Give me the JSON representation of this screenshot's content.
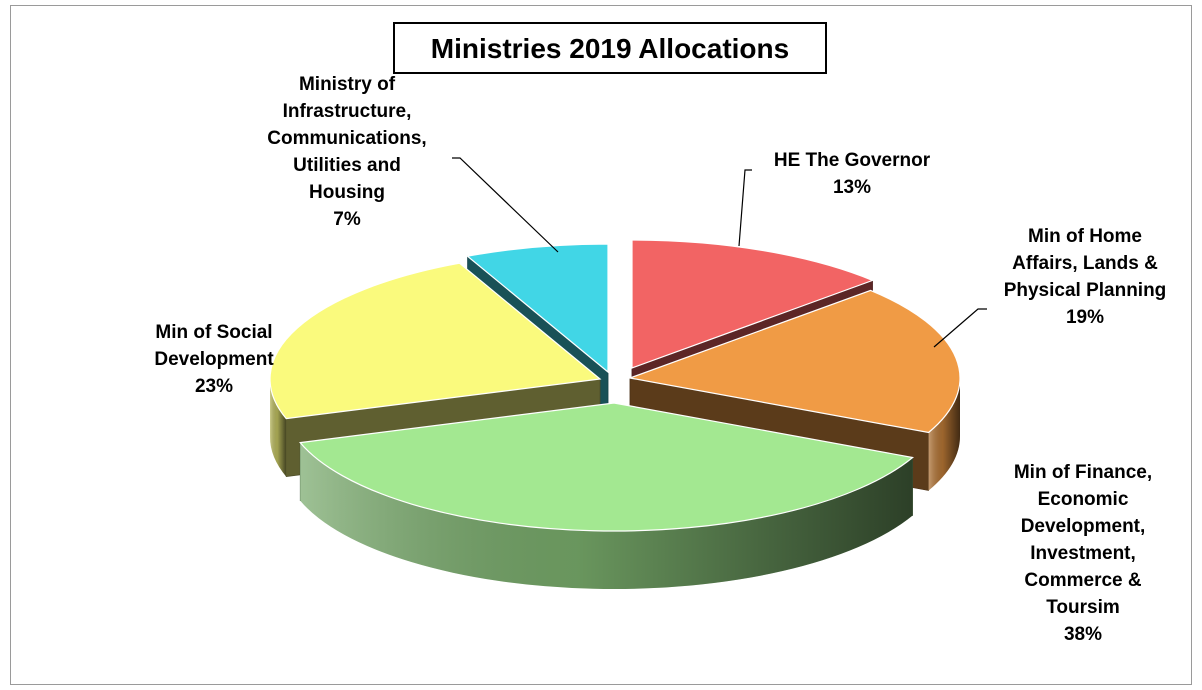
{
  "chart_data": {
    "type": "pie",
    "title": "Ministries 2019 Allocations",
    "three_d": true,
    "exploded": true,
    "legend": "none",
    "slices": [
      {
        "label": "HE The Governor",
        "value": 13,
        "percent_label": "13%",
        "label_lines": [
          "HE The Governor"
        ],
        "color": "#f26464"
      },
      {
        "label": "Min of Home Affairs, Lands & Physical Planning",
        "value": 19,
        "percent_label": "19%",
        "label_lines": [
          "Min of Home",
          "Affairs, Lands &",
          "Physical Planning"
        ],
        "color": "#f09b45"
      },
      {
        "label": "Min of Finance, Economic Development, Investment, Commerce & Toursim",
        "value": 38,
        "percent_label": "38%",
        "label_lines": [
          "Min of Finance,",
          "Economic",
          "Development,",
          "Investment,",
          "Commerce &",
          "Toursim"
        ],
        "color": "#a3e891"
      },
      {
        "label": "Min of Social Development",
        "value": 23,
        "percent_label": "23%",
        "label_lines": [
          "Min of Social",
          "Development"
        ],
        "color": "#fafa7d"
      },
      {
        "label": "Ministry of Infrastructure, Communications, Utilities and Housing",
        "value": 7,
        "percent_label": "7%",
        "label_lines": [
          "Ministry of",
          "Infrastructure,",
          "Communications,",
          "Utilities and",
          "Housing"
        ],
        "color": "#41d6e6"
      }
    ]
  }
}
